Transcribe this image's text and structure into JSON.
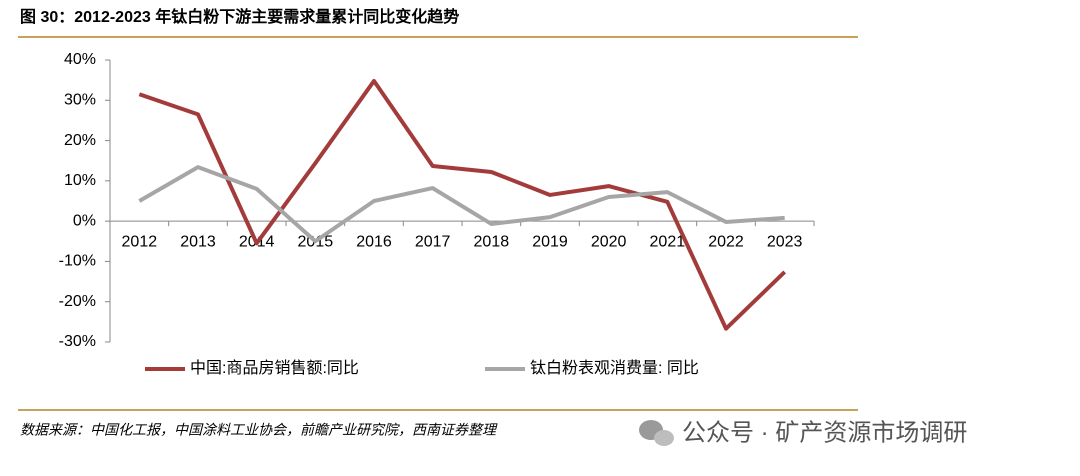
{
  "header": {
    "title": "图 30：2012-2023 年钛白粉下游主要需求量累计同比变化趋势"
  },
  "chart_data": {
    "type": "line",
    "categories": [
      "2012",
      "2013",
      "2014",
      "2015",
      "2016",
      "2017",
      "2018",
      "2019",
      "2020",
      "2021",
      "2022",
      "2023"
    ],
    "series": [
      {
        "name": "中国:商品房销售额:同比",
        "color": "#a33b3b",
        "values": [
          31.5,
          26.5,
          -5.5,
          14.4,
          34.8,
          13.7,
          12.2,
          6.5,
          8.7,
          4.8,
          -26.7,
          -12.6
        ]
      },
      {
        "name": "钛白粉表观消费量: 同比",
        "color": "#a6a6a6",
        "values": [
          5,
          13.4,
          8,
          -5,
          5,
          8.2,
          -0.7,
          1,
          6,
          7.2,
          -0.2,
          0.8
        ]
      }
    ],
    "ylim": [
      -30,
      40
    ],
    "yticks": [
      {
        "value": -30,
        "label": "-30%"
      },
      {
        "value": -20,
        "label": "-20%"
      },
      {
        "value": -10,
        "label": "-10%"
      },
      {
        "value": 0,
        "label": "0%"
      },
      {
        "value": 10,
        "label": "10%"
      },
      {
        "value": 20,
        "label": "20%"
      },
      {
        "value": 30,
        "label": "30%"
      },
      {
        "value": 40,
        "label": "40%"
      }
    ],
    "legend": "bottom"
  },
  "footer": {
    "source": "数据来源：中国化工报，中国涂料工业协会，前瞻产业研究院，西南证券整理",
    "watermark": "公众号 · 矿产资源市场调研"
  }
}
